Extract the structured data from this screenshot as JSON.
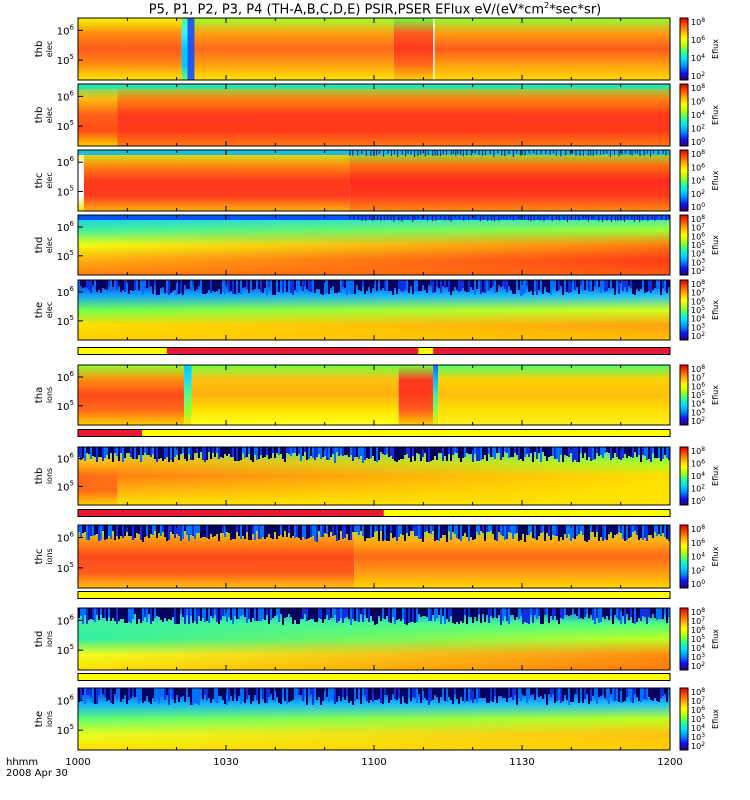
{
  "title": {
    "prefix": "P5, P1, P2, P3, P4 (TH-A,B,C,D,E) PSIR,PSER EFlux eV/(eV*cm",
    "sup": "2",
    "suffix": "*sec*sr)"
  },
  "x_axis": {
    "label_line1": "hhmm",
    "label_line2": "2008 Apr 30",
    "ticks": [
      "1000",
      "1030",
      "1100",
      "1130",
      "1200"
    ]
  },
  "colorbar": {
    "label": "Eflux"
  },
  "colors": {
    "bar_red": "#e51a34",
    "bar_yellow": "#ffff00"
  },
  "chart_data": {
    "type": "heatmap",
    "x_range_minutes": [
      0,
      120
    ],
    "panels": [
      {
        "id": "thb-elec",
        "line1": "thb",
        "line2": "elec",
        "yticks": [
          {
            "m": "10",
            "e": "6"
          },
          {
            "m": "10",
            "e": "5"
          }
        ],
        "cbar_labels": [
          {
            "m": "10",
            "e": "8"
          },
          {
            "m": "10",
            "e": "6"
          },
          {
            "m": "10",
            "e": "4"
          },
          {
            "m": "10",
            "e": "2"
          }
        ],
        "base": [
          [
            "#f2ff00",
            "#a0ff2a",
            "#ffb000",
            "#ff5a1e",
            "#f2ff00"
          ],
          [
            "#ffd000",
            "#ff9a12",
            "#ff4a1c",
            "#ff4a1c",
            "#ffe400"
          ]
        ],
        "segments": [
          {
            "t0": 0,
            "t1": 21,
            "colors": [
              "#f0f800",
              "#ff8c10",
              "#ff5a1e",
              "#ff8c10",
              "#ffe800"
            ]
          },
          {
            "t0": 21,
            "t1": 22.5,
            "colors": [
              "#50ff80",
              "#3af0ff",
              "#00c8ff",
              "#00c8ff",
              "#70ff60"
            ]
          },
          {
            "t0": 22.5,
            "t1": 64,
            "colors": [
              "#9aff30",
              "#ffa010",
              "#ff6a1a",
              "#ffa010",
              "#ffe400"
            ]
          },
          {
            "t0": 64,
            "t1": 72,
            "colors": [
              "#70ff40",
              "#ff5a1e",
              "#ff3a1e",
              "#ff6a1a",
              "#ffd000"
            ]
          },
          {
            "t0": 72,
            "t1": 120,
            "colors": [
              "#90ff38",
              "#ff9a12",
              "#ff5a1e",
              "#ffa010",
              "#ffd800"
            ]
          }
        ],
        "spikes": [
          {
            "t": 22.2,
            "w": 1.4,
            "color": "#1050ff"
          },
          {
            "t": 72,
            "w": 0.3,
            "color": "#ffffff"
          }
        ]
      },
      {
        "id": "thb2-elec",
        "line1": "thb",
        "line2": "elec",
        "yticks": [
          {
            "m": "10",
            "e": "6"
          },
          {
            "m": "10",
            "e": "5"
          }
        ],
        "cbar_labels": [
          {
            "m": "10",
            "e": "8"
          },
          {
            "m": "10",
            "e": "6"
          },
          {
            "m": "10",
            "e": "4"
          },
          {
            "m": "10",
            "e": "2"
          },
          {
            "m": "10",
            "e": "0"
          }
        ],
        "segments": [
          {
            "t0": 0,
            "t1": 8,
            "colors": [
              "#4af07a",
              "#ffb810",
              "#ff6018",
              "#ff4a18",
              "#ffd000"
            ]
          },
          {
            "t0": 8,
            "t1": 120,
            "colors": [
              "#6cf060",
              "#ff8010",
              "#ff3a1a",
              "#ff3a1a",
              "#ff7a10"
            ]
          }
        ],
        "topband": {
          "color": "#20e0c0"
        }
      },
      {
        "id": "thc-elec",
        "line1": "thc",
        "line2": "elec",
        "yticks": [
          {
            "m": "10",
            "e": "6"
          },
          {
            "m": "10",
            "e": "5"
          }
        ],
        "cbar_labels": [
          {
            "m": "10",
            "e": "8"
          },
          {
            "m": "10",
            "e": "6"
          },
          {
            "m": "10",
            "e": "4"
          },
          {
            "m": "10",
            "e": "2"
          },
          {
            "m": "10",
            "e": "0"
          }
        ],
        "segments": [
          {
            "t0": 0,
            "t1": 1.2,
            "colors": [
              "#ffe400",
              "#ffffff",
              "#ffffff",
              "#ffffff",
              "#ffe400"
            ]
          },
          {
            "t0": 1.2,
            "t1": 55,
            "colors": [
              "#c0ff20",
              "#ff8c10",
              "#ff3a1e",
              "#ff3a1e",
              "#ffb010"
            ]
          },
          {
            "t0": 55,
            "t1": 120,
            "colors": [
              "#70ff40",
              "#ff7010",
              "#ff2a1e",
              "#ff3a1e",
              "#ff8c10"
            ]
          }
        ],
        "topband": {
          "color": "#00b4ff",
          "dark": true
        }
      },
      {
        "id": "thd-elec",
        "line1": "thd",
        "line2": "elec",
        "yticks": [
          {
            "m": "10",
            "e": "6"
          },
          {
            "m": "10",
            "e": "5"
          }
        ],
        "cbar_labels": [
          {
            "m": "10",
            "e": "8"
          },
          {
            "m": "10",
            "e": "7"
          },
          {
            "m": "10",
            "e": "6"
          },
          {
            "m": "10",
            "e": "5"
          },
          {
            "m": "10",
            "e": "4"
          },
          {
            "m": "10",
            "e": "3"
          },
          {
            "m": "10",
            "e": "2"
          }
        ],
        "segments": [
          {
            "t0": 0,
            "t1": 120,
            "colors": [
              "#10c8ff",
              "#40f0a0",
              "#f0ff10",
              "#ffb010",
              "#ff8010"
            ]
          }
        ],
        "gradient_right": [
          "#30e0e0",
          "#a0ff30",
          "#ff7a10",
          "#ff3a18",
          "#ff5a14"
        ],
        "topband": {
          "color": "#0040ff",
          "dark": true
        }
      },
      {
        "id": "the-elec",
        "line1": "the",
        "line2": "elec",
        "yticks": [
          {
            "m": "10",
            "e": "6"
          },
          {
            "m": "10",
            "e": "5"
          }
        ],
        "cbar_labels": [
          {
            "m": "10",
            "e": "8"
          },
          {
            "m": "10",
            "e": "7"
          },
          {
            "m": "10",
            "e": "6"
          },
          {
            "m": "10",
            "e": "5"
          },
          {
            "m": "10",
            "e": "4"
          },
          {
            "m": "10",
            "e": "3"
          },
          {
            "m": "10",
            "e": "2"
          }
        ],
        "segments": [
          {
            "t0": 0,
            "t1": 120,
            "colors": [
              "#1020c0",
              "#10a0ff",
              "#70ff50",
              "#ffe000",
              "#ffd000"
            ]
          }
        ],
        "gradient_right": [
          "#1030d0",
          "#20c0ff",
          "#d0ff20",
          "#ffa010",
          "#ffc000"
        ],
        "noisy_top": true
      },
      {
        "id": "tha-ions",
        "line1": "tha",
        "line2": "ions",
        "yticks": [
          {
            "m": "10",
            "e": "6"
          },
          {
            "m": "10",
            "e": "5"
          }
        ],
        "cbar_labels": [
          {
            "m": "10",
            "e": "8"
          },
          {
            "m": "10",
            "e": "7"
          },
          {
            "m": "10",
            "e": "6"
          },
          {
            "m": "10",
            "e": "5"
          },
          {
            "m": "10",
            "e": "4"
          },
          {
            "m": "10",
            "e": "3"
          },
          {
            "m": "10",
            "e": "2"
          }
        ],
        "segments": [
          {
            "t0": 0,
            "t1": 21.5,
            "colors": [
              "#90ff30",
              "#ff8c10",
              "#ff4a1c",
              "#ff6a18",
              "#ffd000"
            ]
          },
          {
            "t0": 21.5,
            "t1": 23,
            "colors": [
              "#00c8ff",
              "#10e0ff",
              "#50ff80",
              "#90ff30",
              "#ffe400"
            ]
          },
          {
            "t0": 23,
            "t1": 65,
            "colors": [
              "#70ff40",
              "#ffc010",
              "#ffb010",
              "#ffe400",
              "#ffff20"
            ]
          },
          {
            "t0": 65,
            "t1": 72,
            "colors": [
              "#70ff40",
              "#ff3a1e",
              "#ff3a1e",
              "#ff5a1e",
              "#ffd000"
            ]
          },
          {
            "t0": 72,
            "t1": 73,
            "colors": [
              "#1060ff",
              "#00c0ff",
              "#40f0a0",
              "#80ff40",
              "#ffe000"
            ]
          },
          {
            "t0": 73,
            "t1": 120,
            "colors": [
              "#50ff70",
              "#ffd000",
              "#ffc010",
              "#ffe000",
              "#fff020"
            ]
          }
        ],
        "bar": {
          "segments": [
            {
              "t0": 0,
              "t1": 18,
              "color": "yellow"
            },
            {
              "t0": 18,
              "t1": 69,
              "color": "red"
            },
            {
              "t0": 69,
              "t1": 72,
              "color": "yellow"
            },
            {
              "t0": 72,
              "t1": 120,
              "color": "red"
            }
          ]
        }
      },
      {
        "id": "thb-ions",
        "line1": "thb",
        "line2": "ions",
        "yticks": [
          {
            "m": "10",
            "e": "6"
          },
          {
            "m": "10",
            "e": "5"
          }
        ],
        "cbar_labels": [
          {
            "m": "10",
            "e": "8"
          },
          {
            "m": "10",
            "e": "6"
          },
          {
            "m": "10",
            "e": "4"
          },
          {
            "m": "10",
            "e": "2"
          },
          {
            "m": "10",
            "e": "0"
          }
        ],
        "segments": [
          {
            "t0": 0,
            "t1": 8,
            "colors": [
              "#30e0c0",
              "#ffc010",
              "#ff6a18",
              "#ff6a18",
              "#ffd000"
            ]
          },
          {
            "t0": 8,
            "t1": 120,
            "colors": [
              "#50f090",
              "#ffb010",
              "#ff7a14",
              "#ffb010",
              "#ffe400"
            ]
          }
        ],
        "gradient_right": [
          "#20d0e0",
          "#a0ff30",
          "#ffe000",
          "#ffe400",
          "#ffe400"
        ],
        "noisy_top": true,
        "bar": {
          "segments": [
            {
              "t0": 0,
              "t1": 13,
              "color": "red"
            },
            {
              "t0": 13,
              "t1": 120,
              "color": "yellow"
            }
          ]
        }
      },
      {
        "id": "thc-ions",
        "line1": "thc",
        "line2": "ions",
        "yticks": [
          {
            "m": "10",
            "e": "6"
          },
          {
            "m": "10",
            "e": "5"
          }
        ],
        "cbar_labels": [
          {
            "m": "10",
            "e": "8"
          },
          {
            "m": "10",
            "e": "6"
          },
          {
            "m": "10",
            "e": "4"
          },
          {
            "m": "10",
            "e": "2"
          },
          {
            "m": "10",
            "e": "0"
          }
        ],
        "segments": [
          {
            "t0": 0,
            "t1": 56,
            "colors": [
              "#a0ff30",
              "#ff9010",
              "#ff4a1c",
              "#ff5a1e",
              "#ffc010"
            ]
          },
          {
            "t0": 56,
            "t1": 120,
            "colors": [
              "#60f060",
              "#ffb010",
              "#ff6a18",
              "#ff9a12",
              "#ffd800"
            ]
          }
        ],
        "noisy_top": true,
        "bar": {
          "segments": [
            {
              "t0": 0,
              "t1": 62,
              "color": "red"
            },
            {
              "t0": 62,
              "t1": 120,
              "color": "yellow"
            }
          ]
        }
      },
      {
        "id": "thd-ions",
        "line1": "thd",
        "line2": "ions",
        "yticks": [
          {
            "m": "10",
            "e": "6"
          },
          {
            "m": "10",
            "e": "5"
          }
        ],
        "cbar_labels": [
          {
            "m": "10",
            "e": "8"
          },
          {
            "m": "10",
            "e": "7"
          },
          {
            "m": "10",
            "e": "6"
          },
          {
            "m": "10",
            "e": "5"
          },
          {
            "m": "10",
            "e": "4"
          },
          {
            "m": "10",
            "e": "3"
          },
          {
            "m": "10",
            "e": "2"
          }
        ],
        "segments": [
          {
            "t0": 0,
            "t1": 120,
            "colors": [
              "#10b0ff",
              "#40f0a0",
              "#30f0a0",
              "#f0ff20",
              "#ffe000"
            ]
          }
        ],
        "gradient_right": [
          "#1050ff",
          "#50ff80",
          "#c0ff20",
          "#ff8c10",
          "#ff7a12"
        ],
        "noisy_top": true,
        "bar": {
          "segments": [
            {
              "t0": 0,
              "t1": 120,
              "color": "yellow"
            }
          ]
        }
      },
      {
        "id": "the-ions",
        "line1": "the",
        "line2": "ions",
        "yticks": [
          {
            "m": "10",
            "e": "6"
          },
          {
            "m": "10",
            "e": "5"
          }
        ],
        "cbar_labels": [
          {
            "m": "10",
            "e": "8"
          },
          {
            "m": "10",
            "e": "7"
          },
          {
            "m": "10",
            "e": "6"
          },
          {
            "m": "10",
            "e": "5"
          },
          {
            "m": "10",
            "e": "4"
          },
          {
            "m": "10",
            "e": "3"
          },
          {
            "m": "10",
            "e": "2"
          }
        ],
        "segments": [
          {
            "t0": 0,
            "t1": 120,
            "colors": [
              "#1020c0",
              "#10b0ff",
              "#60ff70",
              "#e8ff20",
              "#ffe000"
            ]
          }
        ],
        "gradient_right": [
          "#1030d0",
          "#20c0ff",
          "#c0ff20",
          "#ffc010",
          "#ffd000"
        ],
        "noisy_top": true,
        "bar": {
          "segments": [
            {
              "t0": 0,
              "t1": 120,
              "color": "yellow"
            }
          ]
        }
      }
    ]
  }
}
